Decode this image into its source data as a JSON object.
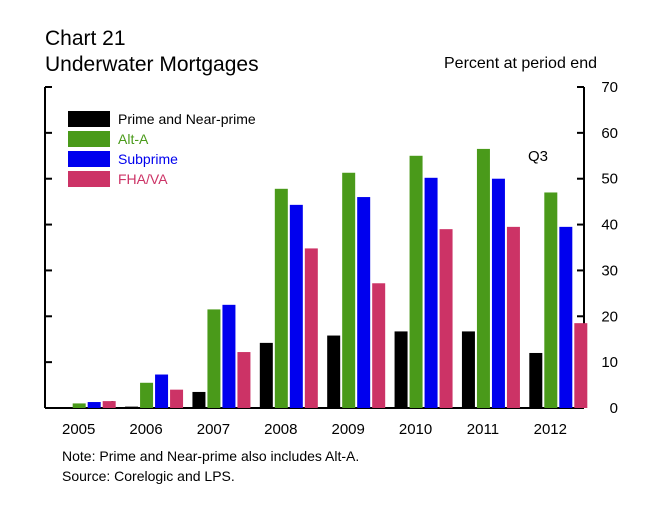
{
  "chart_data": {
    "type": "bar",
    "title": "Chart 21",
    "subtitle": "Underwater Mortgages",
    "ylabel": "Percent at period end",
    "xlabel": "",
    "categories": [
      "2005",
      "2006",
      "2007",
      "2008",
      "2009",
      "2010",
      "2011",
      "2012"
    ],
    "ylim": [
      0,
      70
    ],
    "yticks": [
      0,
      10,
      20,
      30,
      40,
      50,
      60,
      70
    ],
    "y_axis_side": "right",
    "grid": false,
    "legend_position": "top-left",
    "annotation": "Q3",
    "series": [
      {
        "name": "Prime and Near-prime",
        "color": "#000000",
        "values": [
          0,
          0.3,
          3.5,
          14.2,
          15.8,
          16.7,
          16.7,
          12.0
        ]
      },
      {
        "name": "Alt-A",
        "color": "#4a9a1a",
        "values": [
          1.0,
          5.5,
          21.5,
          47.8,
          51.3,
          55.0,
          56.5,
          47.0
        ]
      },
      {
        "name": "Subprime",
        "color": "#0000ee",
        "values": [
          1.3,
          7.3,
          22.5,
          44.3,
          46.0,
          50.2,
          50.0,
          39.5
        ]
      },
      {
        "name": "FHA/VA",
        "color": "#cc3366",
        "values": [
          1.5,
          4.0,
          12.2,
          34.8,
          27.2,
          39.0,
          39.5,
          18.5
        ]
      }
    ]
  },
  "notes": {
    "line1": "Note: Prime and Near-prime also includes Alt-A.",
    "line2": "Source: Corelogic and LPS."
  }
}
